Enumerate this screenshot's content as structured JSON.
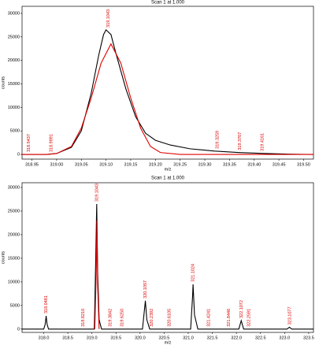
{
  "chart_data": [
    {
      "type": "line",
      "title": "Scan 1 at 1.000",
      "xlabel": "m/z",
      "ylabel": "counts",
      "xlim": [
        318.93,
        319.52
      ],
      "ylim": [
        -1000,
        31500
      ],
      "xticks": [
        318.95,
        {
          "value": 319,
          "label": "319.00"
        },
        319.05,
        {
          "value": 319.1,
          "label": "319.10"
        },
        319.15,
        {
          "value": 319.2,
          "label": "319.20"
        },
        319.25,
        {
          "value": 319.3,
          "label": "319.30"
        },
        319.35,
        {
          "value": 319.4,
          "label": "319.40"
        },
        319.45,
        {
          "value": 319.5,
          "label": "319.50"
        }
      ],
      "yticks": [
        0,
        5000,
        10000,
        15000,
        20000,
        25000,
        30000
      ],
      "series": [
        {
          "color": "#000000",
          "x": [
            318.93,
            318.98,
            319.0,
            319.03,
            319.05,
            319.07,
            319.085,
            319.095,
            319.1,
            319.11,
            319.12,
            319.14,
            319.16,
            319.18,
            319.2,
            319.23,
            319.27,
            319.32,
            319.37,
            319.42,
            319.47,
            319.52
          ],
          "values": [
            0,
            0,
            200,
            1500,
            5000,
            13000,
            21000,
            25500,
            26500,
            25500,
            21500,
            14000,
            8000,
            4500,
            3000,
            2000,
            1200,
            700,
            400,
            200,
            50,
            0
          ]
        },
        {
          "color": "#e00000",
          "x": [
            318.93,
            318.98,
            319.0,
            319.03,
            319.05,
            319.07,
            319.09,
            319.11,
            319.13,
            319.15,
            319.17,
            319.19,
            319.21,
            319.25,
            319.52
          ],
          "values": [
            0,
            0,
            180,
            1700,
            5600,
            12000,
            19400,
            23500,
            19400,
            12000,
            5600,
            1700,
            400,
            0,
            0
          ]
        }
      ],
      "annotations": [
        {
          "label": "318.9437",
          "x": 318.9437,
          "y": 0
        },
        {
          "label": "318.9891",
          "x": 318.9891,
          "y": 0
        },
        {
          "label": "319.1043",
          "x": 319.1043,
          "y": 26500
        },
        {
          "label": "319.3259",
          "x": 319.3259,
          "y": 700
        },
        {
          "label": "319.3707",
          "x": 319.3707,
          "y": 400
        },
        {
          "label": "319.4161",
          "x": 319.4161,
          "y": 200
        }
      ]
    },
    {
      "type": "line",
      "title": "Scan 1 at 1.000",
      "xlabel": "m/z",
      "ylabel": "counts",
      "xlim": [
        317.55,
        323.6
      ],
      "ylim": [
        -700,
        31000
      ],
      "xticks": [
        {
          "value": 318,
          "label": "318.0"
        },
        318.5,
        {
          "value": 319,
          "label": "319.0"
        },
        319.5,
        {
          "value": 320,
          "label": "320.0"
        },
        320.5,
        {
          "value": 321,
          "label": "321.0"
        },
        321.5,
        {
          "value": 322,
          "label": "322.0"
        },
        322.5,
        {
          "value": 323,
          "label": "323.0"
        },
        323.5
      ],
      "yticks": [
        0,
        5000,
        10000,
        15000,
        20000,
        25000,
        30000
      ],
      "series": [
        {
          "color": "#000000",
          "x": [
            317.55,
            318.0,
            318.03,
            318.05,
            318.07,
            318.1,
            319.05,
            319.08,
            319.1,
            319.12,
            319.15,
            319.2,
            320.05,
            320.09,
            320.11,
            320.14,
            320.2,
            321.05,
            321.09,
            321.1,
            321.13,
            321.2,
            322.05,
            322.1,
            322.15,
            323.05,
            323.1,
            323.15,
            323.6
          ],
          "values": [
            0,
            0,
            1000,
            2800,
            1000,
            0,
            0,
            15000,
            26500,
            12000,
            2000,
            0,
            0,
            4000,
            6000,
            2000,
            0,
            0,
            7000,
            9500,
            3000,
            0,
            0,
            1800,
            0,
            0,
            400,
            0,
            0
          ]
        },
        {
          "color": "#e00000",
          "x": [
            319.06,
            319.09,
            319.105,
            319.12,
            319.15
          ],
          "values": [
            0,
            12000,
            23000,
            9000,
            0
          ]
        }
      ],
      "annotations": [
        {
          "label": "318.0481",
          "x": 318.0481,
          "y": 2800
        },
        {
          "label": "318.8210",
          "x": 318.821,
          "y": 0
        },
        {
          "label": "319.1043",
          "x": 319.1043,
          "y": 26500
        },
        {
          "label": "319.3842",
          "x": 319.3842,
          "y": 0
        },
        {
          "label": "319.6250",
          "x": 319.625,
          "y": 0
        },
        {
          "label": "320.1057",
          "x": 320.1057,
          "y": 6000
        },
        {
          "label": "320.2392",
          "x": 320.2392,
          "y": 0
        },
        {
          "label": "320.6105",
          "x": 320.6105,
          "y": 0
        },
        {
          "label": "321.1024",
          "x": 321.1024,
          "y": 9500
        },
        {
          "label": "321.4241",
          "x": 321.4241,
          "y": 0
        },
        {
          "label": "321.8446",
          "x": 321.8446,
          "y": 0
        },
        {
          "label": "322.1072",
          "x": 322.1072,
          "y": 1800
        },
        {
          "label": "322.2591",
          "x": 322.2591,
          "y": 0
        },
        {
          "label": "323.1077",
          "x": 323.1077,
          "y": 400
        }
      ]
    }
  ]
}
